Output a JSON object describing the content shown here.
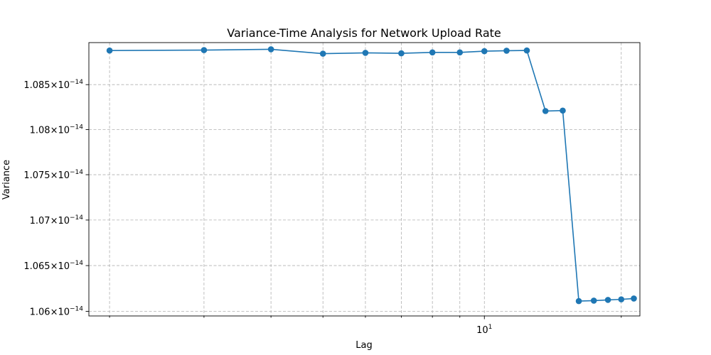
{
  "chart_data": {
    "type": "line",
    "title": "Variance-Time Analysis for Network Upload Rate",
    "xlabel": "Lag",
    "ylabel": "Variance",
    "x_scale": "log",
    "y_scale": "log",
    "grid": true,
    "xlim": [
      1.83,
      19.5
    ],
    "ylim": [
      1.0595e-14,
      1.0897e-14
    ],
    "x_ticks": [
      {
        "value": 2,
        "label": ""
      },
      {
        "value": 3,
        "label": ""
      },
      {
        "value": 4,
        "label": ""
      },
      {
        "value": 5,
        "label": ""
      },
      {
        "value": 6,
        "label": ""
      },
      {
        "value": 7,
        "label": ""
      },
      {
        "value": 8,
        "label": ""
      },
      {
        "value": 9,
        "label": ""
      },
      {
        "value": 10,
        "label": "10",
        "exp": "1"
      },
      {
        "value": 18,
        "label": ""
      }
    ],
    "y_ticks": [
      {
        "value": 1.06e-14,
        "label": "1.06",
        "exp": "−14"
      },
      {
        "value": 1.065e-14,
        "label": "1.065",
        "exp": "−14"
      },
      {
        "value": 1.07e-14,
        "label": "1.07",
        "exp": "−14"
      },
      {
        "value": 1.075e-14,
        "label": "1.075",
        "exp": "−14"
      },
      {
        "value": 1.08e-14,
        "label": "1.08",
        "exp": "−14"
      },
      {
        "value": 1.085e-14,
        "label": "1.085",
        "exp": "−14"
      }
    ],
    "series": [
      {
        "color": "#1f77b4",
        "x": [
          2,
          3,
          4,
          5,
          6,
          7,
          8,
          9,
          10,
          11,
          12,
          13,
          14,
          15,
          16,
          17,
          18,
          19
        ],
        "y": [
          1.08881e-14,
          1.08886e-14,
          1.08895e-14,
          1.08846e-14,
          1.08855e-14,
          1.0885e-14,
          1.0886e-14,
          1.0886e-14,
          1.08874e-14,
          1.08879e-14,
          1.08882e-14,
          1.08206e-14,
          1.08211e-14,
          1.06112e-14,
          1.06117e-14,
          1.06125e-14,
          1.06131e-14,
          1.0614e-14
        ]
      }
    ]
  },
  "ylabel_mult": "×10"
}
